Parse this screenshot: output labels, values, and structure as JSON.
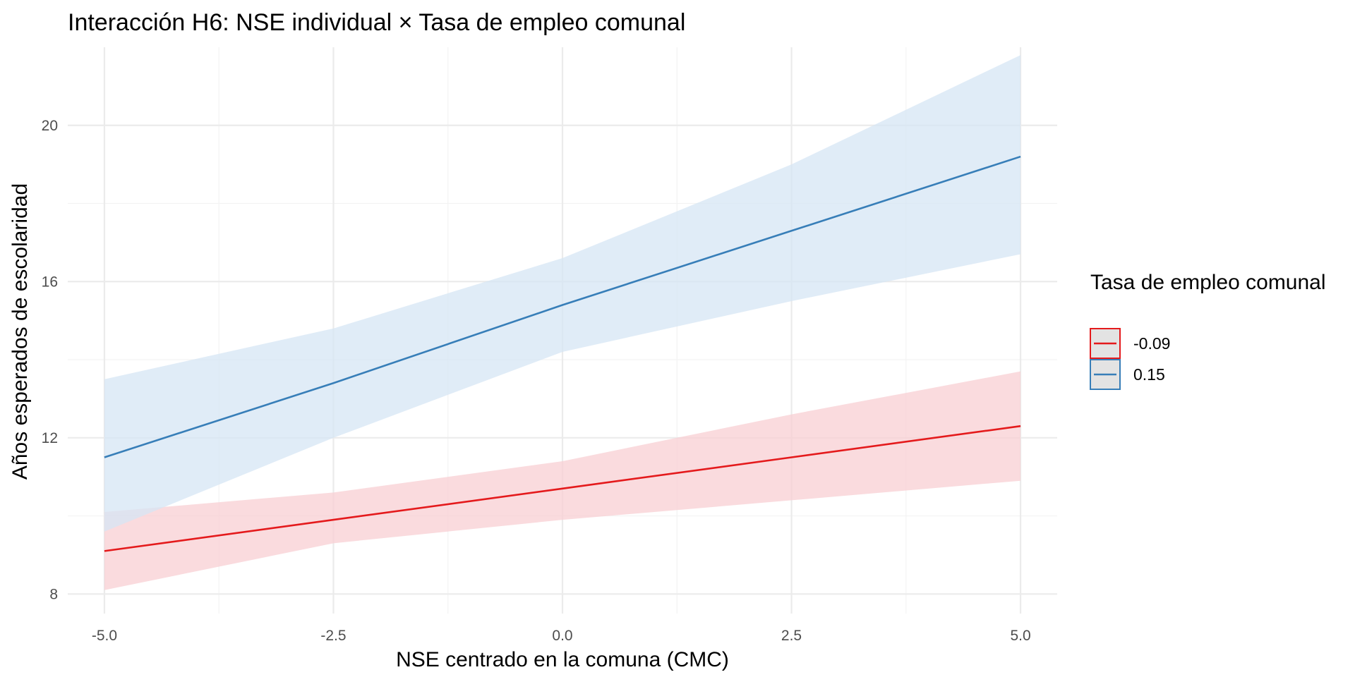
{
  "chart_data": {
    "type": "line",
    "title": "Interacción H6: NSE individual × Tasa de empleo comunal",
    "xlabel": "NSE centrado en la comuna (CMC)",
    "ylabel": "Años esperados de escolaridad",
    "xlim": [
      -5.4,
      5.4
    ],
    "ylim": [
      7.5,
      22.0
    ],
    "x_ticks": [
      -5.0,
      -2.5,
      0.0,
      2.5,
      5.0
    ],
    "x_tick_labels": [
      "-5.0",
      "-2.5",
      "0.0",
      "2.5",
      "5.0"
    ],
    "y_ticks": [
      8,
      12,
      16,
      20
    ],
    "y_tick_labels": [
      "8",
      "12",
      "16",
      "20"
    ],
    "grid": true,
    "legend": {
      "title": "Tasa de empleo comunal",
      "position": "right"
    },
    "x": [
      -5.0,
      -2.5,
      0.0,
      2.5,
      5.0
    ],
    "series": [
      {
        "name": "-0.09",
        "color": "#e41a1c",
        "fill": "#f8cfd3",
        "values": [
          9.1,
          9.9,
          10.7,
          11.5,
          12.3
        ],
        "lower": [
          8.1,
          9.3,
          9.9,
          10.4,
          10.9
        ],
        "upper": [
          10.1,
          10.6,
          11.4,
          12.6,
          13.7
        ]
      },
      {
        "name": "0.15",
        "color": "#377eb8",
        "fill": "#d6e6f4",
        "values": [
          11.5,
          13.4,
          15.4,
          17.3,
          19.2
        ],
        "lower": [
          9.6,
          12.0,
          14.2,
          15.5,
          16.7
        ],
        "upper": [
          13.5,
          14.8,
          16.6,
          19.0,
          21.8
        ]
      }
    ]
  }
}
